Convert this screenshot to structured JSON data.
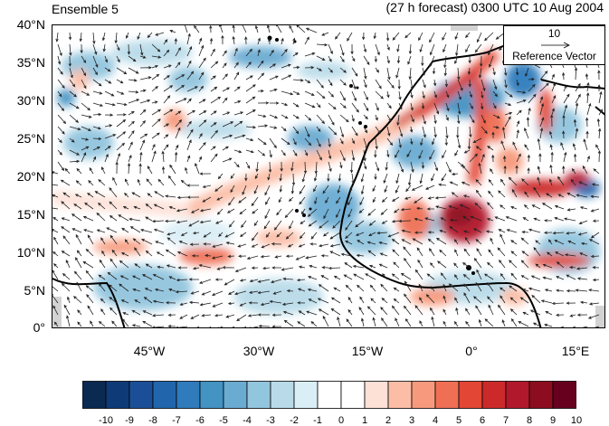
{
  "title_left": "Ensemble 5",
  "title_right": "(27 h forecast) 0300 UTC 10 Aug 2004",
  "map": {
    "lat_labels": [
      "40°N",
      "35°N",
      "30°N",
      "25°N",
      "20°N",
      "15°N",
      "10°N",
      "5°N",
      "0°"
    ],
    "lon_labels": [
      "45°W",
      "30°W",
      "15°W",
      "0°",
      "15°E"
    ],
    "land_color": "#d3d3d3"
  },
  "reference_vector": {
    "magnitude": "10",
    "label": "Reference Vector"
  },
  "colorbar": {
    "labels": [
      "-10",
      "-9",
      "-8",
      "-7",
      "-6",
      "-5",
      "-4",
      "-3",
      "-2",
      "-1",
      "0",
      "1",
      "2",
      "3",
      "4",
      "5",
      "6",
      "7",
      "8",
      "9",
      "10"
    ],
    "colors": [
      "#0a2a52",
      "#0f3a78",
      "#1a4f97",
      "#2166ac",
      "#2f7bbc",
      "#4393c3",
      "#6aabd2",
      "#92c5de",
      "#b9dbe9",
      "#daeef6",
      "#ffffff",
      "#ffffff",
      "#fde0d6",
      "#fbbda6",
      "#f7997c",
      "#ef6f55",
      "#e34635",
      "#cc2a2a",
      "#b2182b",
      "#8b0d1f",
      "#67001f"
    ]
  }
}
